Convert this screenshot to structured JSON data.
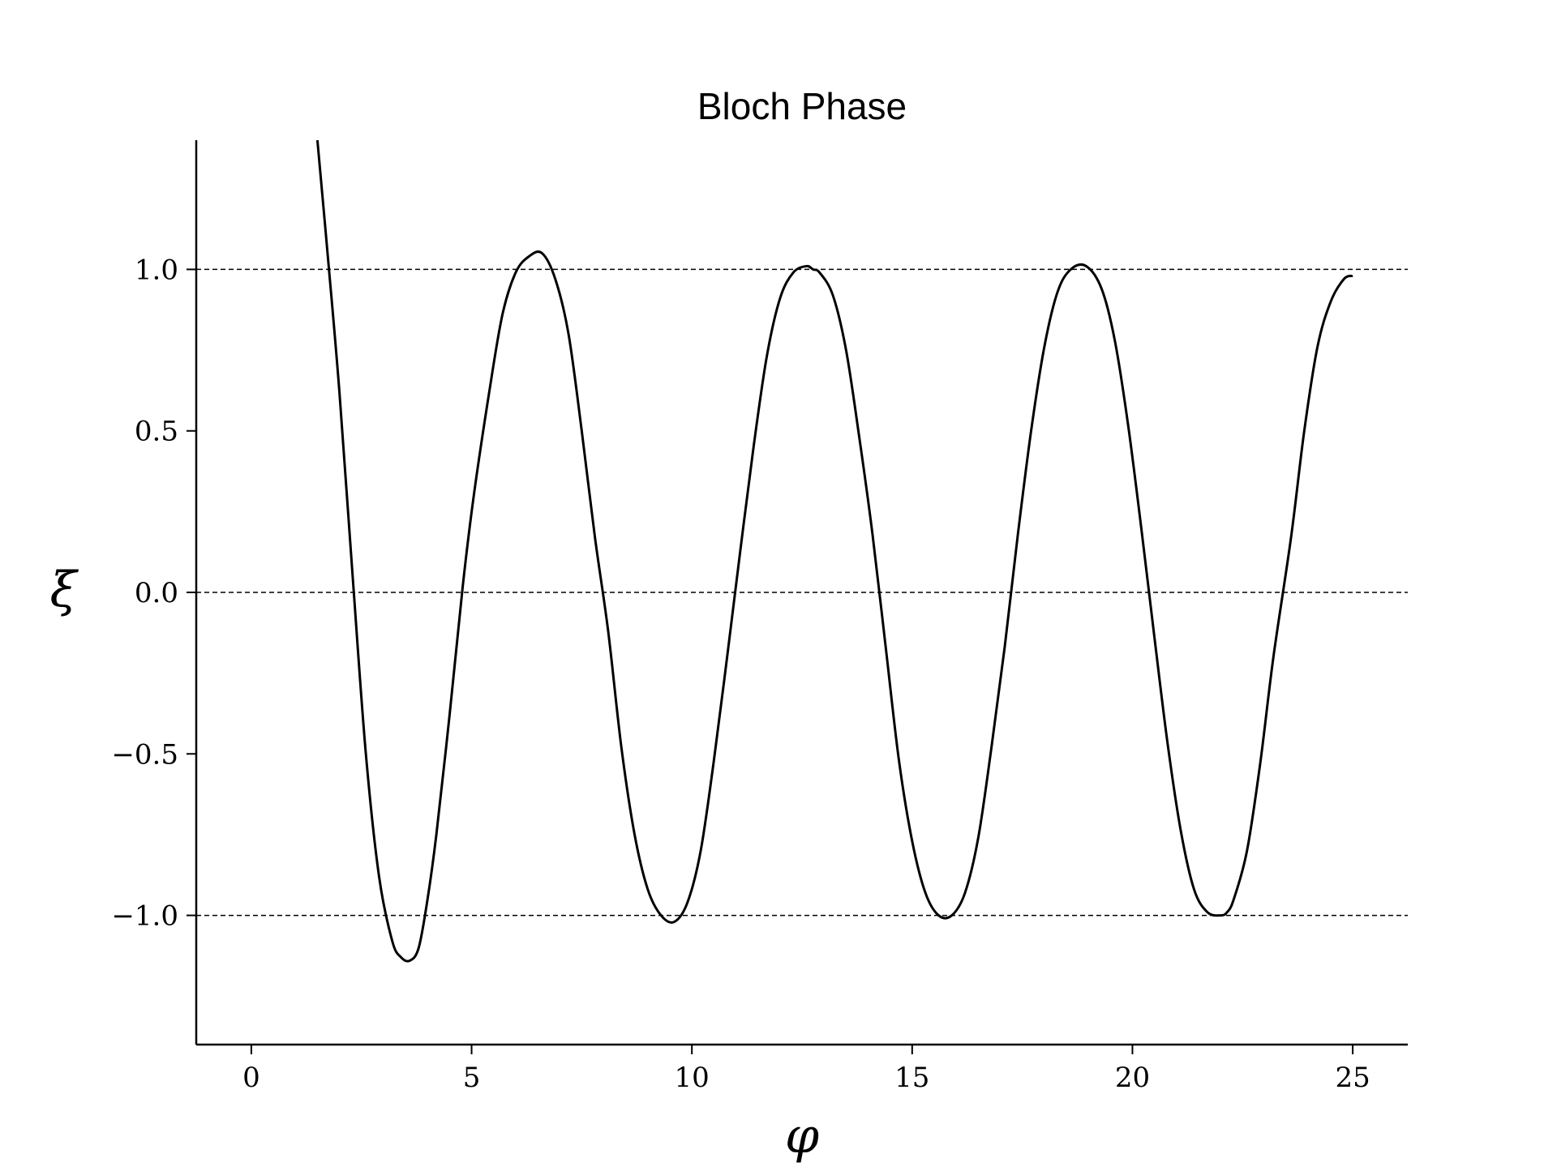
{
  "chart_data": {
    "type": "line",
    "title": "Bloch Phase",
    "xlabel": "φ",
    "ylabel": "ξ",
    "xlim": [
      -1.25,
      26.25
    ],
    "ylim": [
      -1.4,
      1.4
    ],
    "x_ticks": [
      0,
      5,
      10,
      15,
      20,
      25
    ],
    "x_tick_labels": [
      "0",
      "5",
      "10",
      "15",
      "20",
      "25"
    ],
    "y_ticks": [
      -1.0,
      -0.5,
      0.0,
      0.5,
      1.0
    ],
    "y_tick_labels": [
      "−1.0",
      "−0.5",
      "0.0",
      "0.5",
      "1.0"
    ],
    "reference_lines": [
      -1.0,
      0.0,
      1.0
    ],
    "grid": false,
    "line_color": "#000000",
    "series": [
      {
        "x": [
          1.5,
          1.75,
          2.0,
          2.3,
          2.6,
          2.9,
          3.2,
          3.4,
          3.6,
          3.8,
          4.0,
          4.2,
          4.5,
          4.8,
          5.05,
          5.4,
          5.7,
          6.0,
          6.3,
          6.6,
          6.9,
          7.2,
          7.5,
          7.8,
          8.1,
          8.4,
          8.7,
          9.0,
          9.3,
          9.6,
          9.9,
          10.2,
          10.5,
          10.8,
          11.1,
          11.4,
          11.7,
          12.0,
          12.3,
          12.6,
          12.75,
          12.9,
          13.2,
          13.5,
          13.8,
          14.1,
          14.4,
          14.7,
          15.0,
          15.3,
          15.6,
          15.9,
          16.2,
          16.5,
          16.8,
          17.1,
          17.4,
          17.7,
          18.0,
          18.3,
          18.6,
          18.95,
          19.3,
          19.6,
          19.9,
          20.2,
          20.5,
          20.8,
          21.1,
          21.4,
          21.7,
          22.0,
          22.15,
          22.3,
          22.6,
          22.9,
          23.2,
          23.6,
          23.9,
          24.2,
          24.5,
          24.8,
          25.0
        ],
        "y": [
          1.4,
          1.02,
          0.62,
          0.05,
          -0.5,
          -0.88,
          -1.08,
          -1.13,
          -1.14,
          -1.1,
          -0.95,
          -0.75,
          -0.38,
          0.02,
          0.3,
          0.62,
          0.86,
          0.99,
          1.04,
          1.05,
          0.97,
          0.8,
          0.5,
          0.17,
          -0.12,
          -0.48,
          -0.75,
          -0.92,
          -1.0,
          -1.02,
          -0.96,
          -0.8,
          -0.52,
          -0.2,
          0.13,
          0.45,
          0.73,
          0.91,
          0.99,
          1.01,
          1.0,
          0.99,
          0.92,
          0.75,
          0.48,
          0.18,
          -0.17,
          -0.52,
          -0.77,
          -0.93,
          -1.0,
          -1.0,
          -0.93,
          -0.76,
          -0.48,
          -0.17,
          0.18,
          0.5,
          0.76,
          0.93,
          1.0,
          1.01,
          0.94,
          0.78,
          0.52,
          0.2,
          -0.14,
          -0.47,
          -0.74,
          -0.92,
          -0.99,
          -1.0,
          -0.99,
          -0.95,
          -0.8,
          -0.53,
          -0.2,
          0.17,
          0.5,
          0.76,
          0.9,
          0.97,
          0.98
        ]
      }
    ]
  }
}
